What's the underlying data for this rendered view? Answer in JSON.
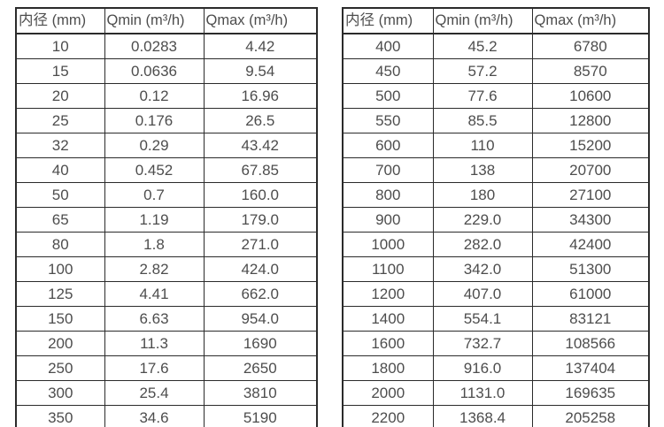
{
  "theme": {
    "text_color": "#4d4d4d",
    "border_color": "#2b2b2b",
    "background_color": "#ffffff"
  },
  "tables": [
    {
      "name": "flow-rate-table-small-diameters",
      "headers": [
        "内径 (mm)",
        "Qmin (m³/h)",
        "Qmax (m³/h)"
      ],
      "rows": [
        [
          "10",
          "0.0283",
          "4.42"
        ],
        [
          "15",
          "0.0636",
          "9.54"
        ],
        [
          "20",
          "0.12",
          "16.96"
        ],
        [
          "25",
          "0.176",
          "26.5"
        ],
        [
          "32",
          "0.29",
          "43.42"
        ],
        [
          "40",
          "0.452",
          "67.85"
        ],
        [
          "50",
          "0.7",
          "160.0"
        ],
        [
          "65",
          "1.19",
          "179.0"
        ],
        [
          "80",
          "1.8",
          "271.0"
        ],
        [
          "100",
          "2.82",
          "424.0"
        ],
        [
          "125",
          "4.41",
          "662.0"
        ],
        [
          "150",
          "6.63",
          "954.0"
        ],
        [
          "200",
          "11.3",
          "1690"
        ],
        [
          "250",
          "17.6",
          "2650"
        ],
        [
          "300",
          "25.4",
          "3810"
        ],
        [
          "350",
          "34.6",
          "5190"
        ]
      ]
    },
    {
      "name": "flow-rate-table-large-diameters",
      "headers": [
        "内径 (mm)",
        "Qmin (m³/h)",
        "Qmax (m³/h)"
      ],
      "rows": [
        [
          "400",
          "45.2",
          "6780"
        ],
        [
          "450",
          "57.2",
          "8570"
        ],
        [
          "500",
          "77.6",
          "10600"
        ],
        [
          "550",
          "85.5",
          "12800"
        ],
        [
          "600",
          "110",
          "15200"
        ],
        [
          "700",
          "138",
          "20700"
        ],
        [
          "800",
          "180",
          "27100"
        ],
        [
          "900",
          "229.0",
          "34300"
        ],
        [
          "1000",
          "282.0",
          "42400"
        ],
        [
          "1100",
          "342.0",
          "51300"
        ],
        [
          "1200",
          "407.0",
          "61000"
        ],
        [
          "1400",
          "554.1",
          "83121"
        ],
        [
          "1600",
          "732.7",
          "108566"
        ],
        [
          "1800",
          "916.0",
          "137404"
        ],
        [
          "2000",
          "1131.0",
          "169635"
        ],
        [
          "2200",
          "1368.4",
          "205258"
        ]
      ]
    }
  ]
}
